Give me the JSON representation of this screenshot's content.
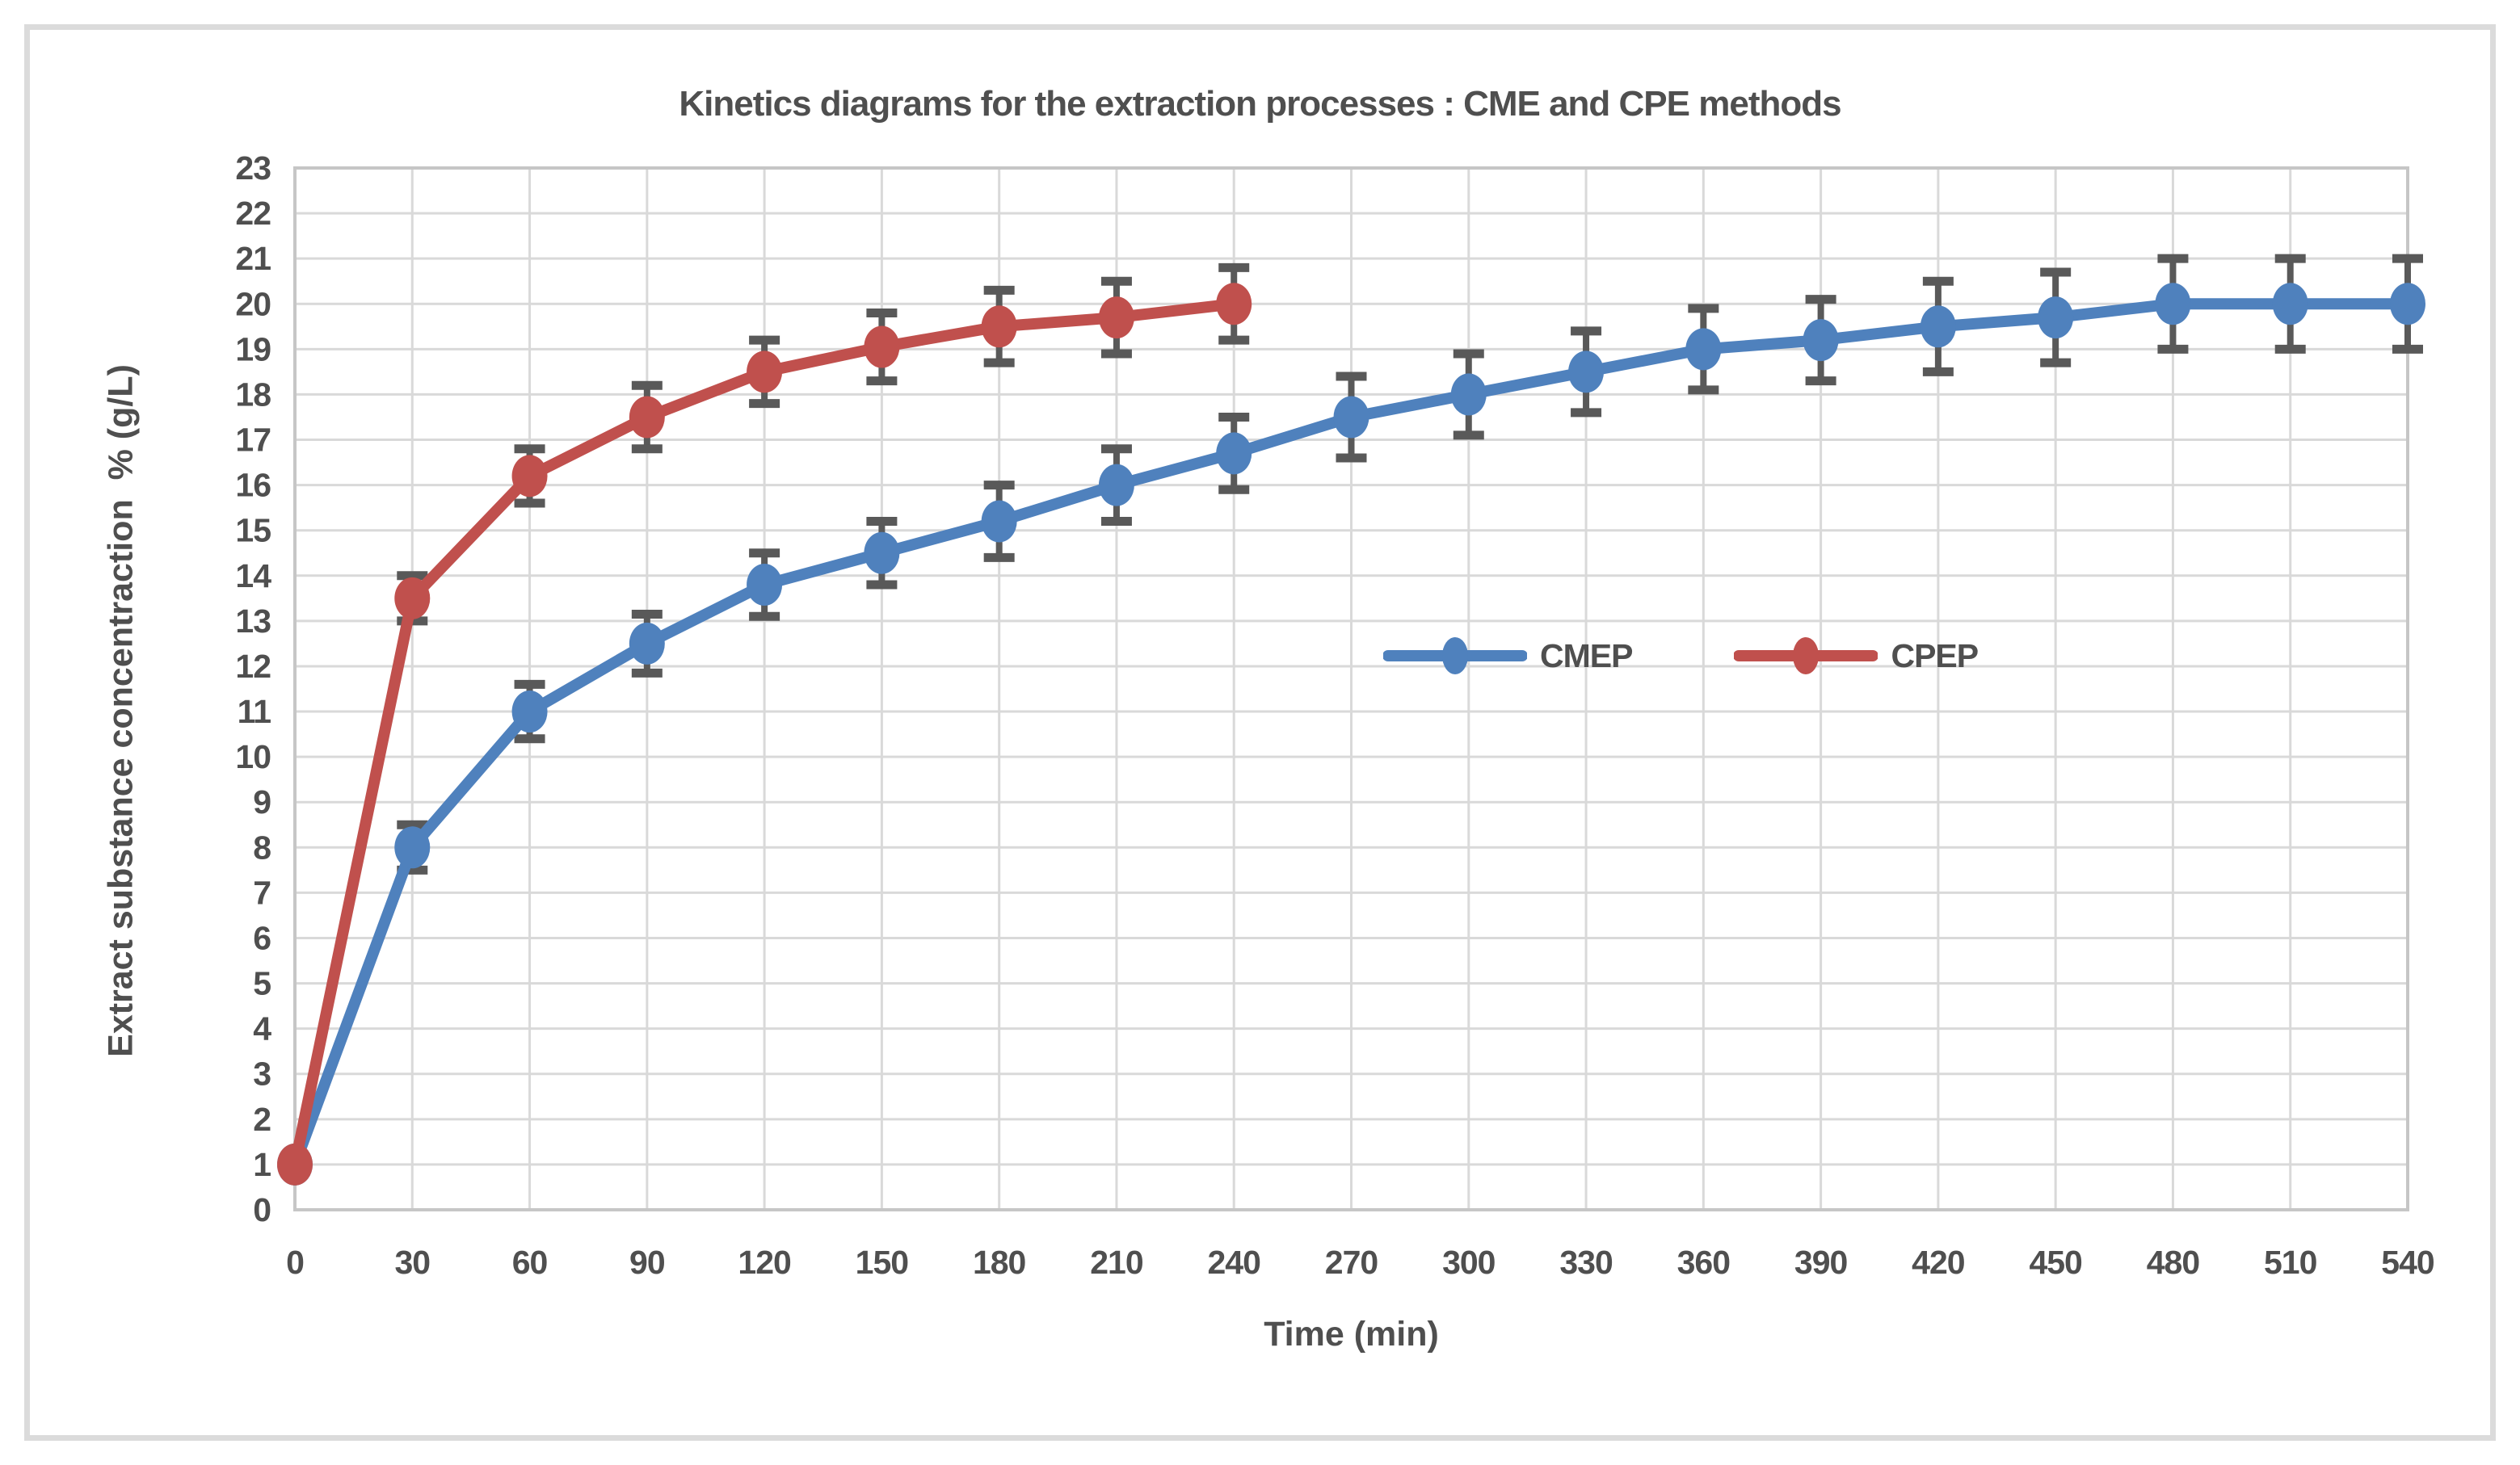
{
  "chart_data": {
    "type": "line",
    "title": "Kinetics diagrams for the extraction processes : CME and CPE methods",
    "xlabel": "Time (min)",
    "ylabel": "Extract substance concentraction  % (g/L)",
    "x_ticks": [
      0,
      30,
      60,
      90,
      120,
      150,
      180,
      210,
      240,
      270,
      300,
      330,
      360,
      390,
      420,
      450,
      480,
      510,
      540
    ],
    "xlim": [
      0,
      540
    ],
    "ylim": [
      0,
      23
    ],
    "ytick_step": 1,
    "grid": true,
    "legend_position": "inside-center-right",
    "series": [
      {
        "name": "CMEP",
        "color": "#4F81BD",
        "marker": "circle",
        "x": [
          0,
          30,
          60,
          90,
          120,
          150,
          180,
          210,
          240,
          270,
          300,
          330,
          360,
          390,
          420,
          450,
          480,
          510,
          540
        ],
        "values": [
          1,
          8,
          11,
          12.5,
          13.8,
          14.5,
          15.2,
          16,
          16.7,
          17.5,
          18,
          18.5,
          19,
          19.2,
          19.5,
          19.7,
          20,
          20,
          20
        ],
        "errors": [
          0,
          0.5,
          0.6,
          0.65,
          0.7,
          0.7,
          0.8,
          0.8,
          0.8,
          0.9,
          0.9,
          0.9,
          0.9,
          0.9,
          1,
          1,
          1,
          1,
          1
        ]
      },
      {
        "name": "CPEP",
        "color": "#C0504D",
        "marker": "circle",
        "x": [
          0,
          30,
          60,
          90,
          120,
          150,
          180,
          210,
          240
        ],
        "values": [
          1,
          13.5,
          16.2,
          17.5,
          18.5,
          19.05,
          19.5,
          19.7,
          20
        ],
        "errors": [
          0,
          0.5,
          0.6,
          0.7,
          0.7,
          0.75,
          0.8,
          0.8,
          0.8
        ]
      }
    ],
    "styles": {
      "background": "#FFFFFF",
      "grid_color": "#D9D9D9",
      "axis_border_color": "#C6C6C6",
      "text_color": "#4F4F4F",
      "error_bar_color": "#595959",
      "figure_border_color": "#DBDBDB"
    }
  }
}
